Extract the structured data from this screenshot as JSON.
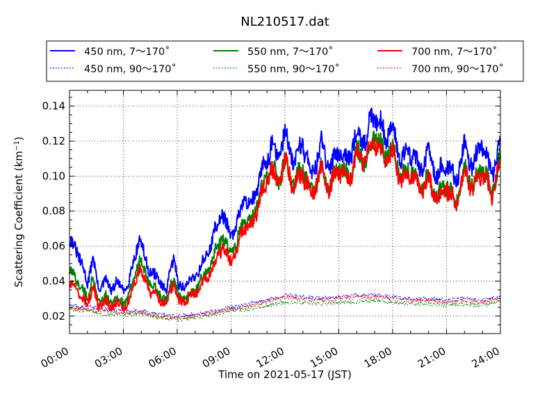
{
  "chart_data": {
    "type": "line",
    "title": "NL210517.dat",
    "xlabel": "Time on 2021-05-17 (JST)",
    "ylabel": "Scattering Coefficient (km",
    "ylabel_sup": "−1",
    "ylabel_close": ")",
    "xlim": [
      0,
      24
    ],
    "ylim": [
      0.01,
      0.149
    ],
    "x_ticks": [
      0,
      3,
      6,
      9,
      12,
      15,
      18,
      21,
      24
    ],
    "x_tick_labels": [
      "00:00",
      "03:00",
      "06:00",
      "09:00",
      "12:00",
      "15:00",
      "18:00",
      "21:00",
      "24:00"
    ],
    "y_ticks": [
      0.02,
      0.04,
      0.06,
      0.08,
      0.1,
      0.12,
      0.14
    ],
    "y_tick_labels": [
      "0.02",
      "0.04",
      "0.06",
      "0.08",
      "0.10",
      "0.12",
      "0.14"
    ],
    "grid": true,
    "legend_position": "top",
    "series": [
      {
        "name": "450 nm, 7～170˚",
        "color": "#0000ff",
        "style": "solid",
        "x": [
          0,
          0.5,
          1,
          1.3,
          1.6,
          2,
          2.3,
          2.6,
          3,
          3.3,
          3.6,
          3.9,
          4.2,
          4.5,
          5,
          5.4,
          5.8,
          6.1,
          6.5,
          6.9,
          7.3,
          7.7,
          8.1,
          8.5,
          8.9,
          9.3,
          9.7,
          10.1,
          10.5,
          10.8,
          11.2,
          11.6,
          12,
          12.5,
          13,
          13.5,
          14,
          14.5,
          15,
          15.5,
          16,
          16.5,
          17,
          17.5,
          18,
          18.5,
          19,
          19.5,
          20,
          20.5,
          21,
          21.5,
          22,
          22.5,
          23,
          23.5,
          24
        ],
        "values": [
          0.063,
          0.056,
          0.038,
          0.055,
          0.035,
          0.041,
          0.034,
          0.04,
          0.034,
          0.04,
          0.052,
          0.066,
          0.052,
          0.046,
          0.04,
          0.034,
          0.055,
          0.036,
          0.038,
          0.042,
          0.048,
          0.056,
          0.068,
          0.08,
          0.066,
          0.07,
          0.088,
          0.083,
          0.095,
          0.104,
          0.118,
          0.11,
          0.124,
          0.108,
          0.12,
          0.1,
          0.118,
          0.104,
          0.117,
          0.108,
          0.125,
          0.12,
          0.138,
          0.124,
          0.126,
          0.11,
          0.115,
          0.104,
          0.112,
          0.1,
          0.108,
          0.096,
          0.118,
          0.105,
          0.12,
          0.1,
          0.12
        ]
      },
      {
        "name": "450 nm, 90～170˚",
        "color": "#0000ff",
        "style": "dotted",
        "x": [
          0,
          1,
          2,
          3,
          4,
          5,
          6,
          7,
          8,
          9,
          10,
          11,
          12,
          13,
          14,
          15,
          16,
          17,
          18,
          19,
          20,
          21,
          22,
          23,
          24
        ],
        "values": [
          0.026,
          0.025,
          0.024,
          0.023,
          0.023,
          0.021,
          0.02,
          0.021,
          0.023,
          0.025,
          0.027,
          0.029,
          0.032,
          0.031,
          0.03,
          0.031,
          0.032,
          0.032,
          0.031,
          0.03,
          0.03,
          0.029,
          0.03,
          0.029,
          0.031
        ]
      },
      {
        "name": "550 nm, 7～170˚",
        "color": "#008000",
        "style": "solid",
        "x": [
          0,
          0.5,
          1,
          1.3,
          1.6,
          2,
          2.3,
          2.6,
          3,
          3.3,
          3.6,
          3.9,
          4.2,
          4.5,
          5,
          5.4,
          5.8,
          6.1,
          6.5,
          6.9,
          7.3,
          7.7,
          8.1,
          8.5,
          8.9,
          9.3,
          9.7,
          10.1,
          10.5,
          10.8,
          11.2,
          11.6,
          12,
          12.5,
          13,
          13.5,
          14,
          14.5,
          15,
          15.5,
          16,
          16.5,
          17,
          17.5,
          18,
          18.5,
          19,
          19.5,
          20,
          20.5,
          21,
          21.5,
          22,
          22.5,
          23,
          23.5,
          24
        ],
        "values": [
          0.045,
          0.04,
          0.03,
          0.043,
          0.028,
          0.032,
          0.027,
          0.031,
          0.027,
          0.032,
          0.042,
          0.053,
          0.044,
          0.038,
          0.033,
          0.028,
          0.044,
          0.03,
          0.031,
          0.034,
          0.04,
          0.046,
          0.056,
          0.066,
          0.056,
          0.06,
          0.076,
          0.072,
          0.086,
          0.094,
          0.106,
          0.098,
          0.108,
          0.096,
          0.104,
          0.09,
          0.104,
          0.094,
          0.106,
          0.098,
          0.113,
          0.11,
          0.124,
          0.112,
          0.114,
          0.1,
          0.104,
          0.094,
          0.1,
          0.088,
          0.096,
          0.086,
          0.104,
          0.094,
          0.106,
          0.09,
          0.11
        ]
      },
      {
        "name": "550 nm, 90～170˚",
        "color": "#008000",
        "style": "dotted",
        "x": [
          0,
          1,
          2,
          3,
          4,
          5,
          6,
          7,
          8,
          9,
          10,
          11,
          12,
          13,
          14,
          15,
          16,
          17,
          18,
          19,
          20,
          21,
          22,
          23,
          24
        ],
        "values": [
          0.024,
          0.023,
          0.021,
          0.021,
          0.021,
          0.019,
          0.018,
          0.019,
          0.021,
          0.023,
          0.024,
          0.026,
          0.028,
          0.028,
          0.027,
          0.028,
          0.028,
          0.029,
          0.028,
          0.027,
          0.027,
          0.026,
          0.027,
          0.026,
          0.028
        ]
      },
      {
        "name": "700 nm, 7～170˚",
        "color": "#ff0000",
        "style": "solid",
        "x": [
          0,
          0.5,
          1,
          1.3,
          1.6,
          2,
          2.3,
          2.6,
          3,
          3.3,
          3.6,
          3.9,
          4.2,
          4.5,
          5,
          5.4,
          5.8,
          6.1,
          6.5,
          6.9,
          7.3,
          7.7,
          8.1,
          8.5,
          8.9,
          9.3,
          9.7,
          10.1,
          10.5,
          10.8,
          11.2,
          11.6,
          12,
          12.5,
          13,
          13.5,
          14,
          14.5,
          15,
          15.5,
          16,
          16.5,
          17,
          17.5,
          18,
          18.5,
          19,
          19.5,
          20,
          20.5,
          21,
          21.5,
          22,
          22.5,
          23,
          23.5,
          24
        ],
        "values": [
          0.038,
          0.034,
          0.026,
          0.038,
          0.025,
          0.029,
          0.024,
          0.028,
          0.024,
          0.029,
          0.038,
          0.048,
          0.04,
          0.034,
          0.03,
          0.026,
          0.04,
          0.028,
          0.029,
          0.032,
          0.037,
          0.042,
          0.05,
          0.06,
          0.052,
          0.056,
          0.072,
          0.07,
          0.084,
          0.092,
          0.104,
          0.096,
          0.108,
          0.094,
          0.102,
          0.088,
          0.103,
          0.093,
          0.105,
          0.097,
          0.112,
          0.108,
          0.122,
          0.11,
          0.112,
          0.098,
          0.102,
          0.092,
          0.098,
          0.086,
          0.094,
          0.084,
          0.102,
          0.092,
          0.104,
          0.088,
          0.108
        ]
      },
      {
        "name": "700 nm, 90～170˚",
        "color": "#ff0000",
        "style": "dotted",
        "x": [
          0,
          1,
          2,
          3,
          4,
          5,
          6,
          7,
          8,
          9,
          10,
          11,
          12,
          13,
          14,
          15,
          16,
          17,
          18,
          19,
          20,
          21,
          22,
          23,
          24
        ],
        "values": [
          0.025,
          0.024,
          0.023,
          0.022,
          0.022,
          0.02,
          0.019,
          0.02,
          0.022,
          0.024,
          0.026,
          0.028,
          0.031,
          0.03,
          0.029,
          0.03,
          0.031,
          0.031,
          0.03,
          0.029,
          0.029,
          0.028,
          0.029,
          0.028,
          0.03
        ]
      }
    ]
  }
}
